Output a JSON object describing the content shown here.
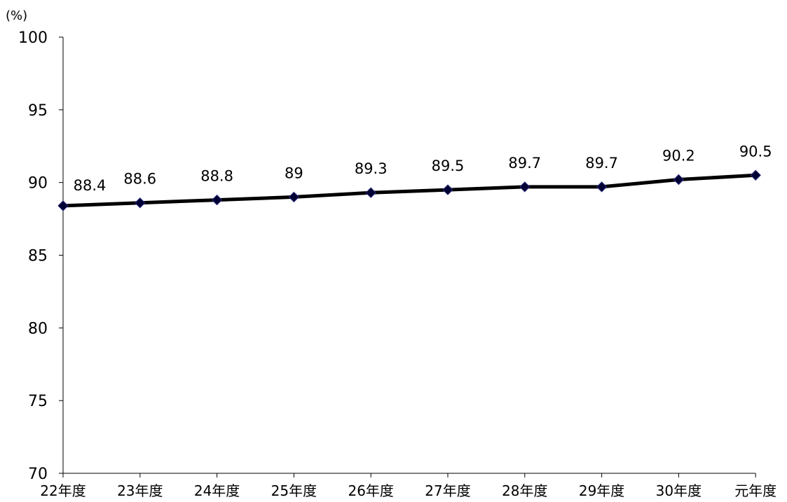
{
  "chart_data": {
    "type": "line",
    "title": "",
    "xlabel": "",
    "ylabel": "(%)",
    "ylim": [
      70,
      100
    ],
    "yticks": [
      70,
      75,
      80,
      85,
      90,
      95,
      100
    ],
    "categories": [
      "22年度",
      "23年度",
      "24年度",
      "25年度",
      "26年度",
      "27年度",
      "28年度",
      "29年度",
      "30年度",
      "元年度"
    ],
    "series": [
      {
        "values": [
          88.4,
          88.6,
          88.8,
          89,
          89.3,
          89.5,
          89.7,
          89.7,
          90.2,
          90.5
        ],
        "labels": [
          "88.4",
          "88.6",
          "88.8",
          "89",
          "89.3",
          "89.5",
          "89.7",
          "89.7",
          "90.2",
          "90.5"
        ],
        "line_color": "#000000",
        "marker_color": "#000033"
      }
    ],
    "grid": false,
    "legend": "none"
  }
}
